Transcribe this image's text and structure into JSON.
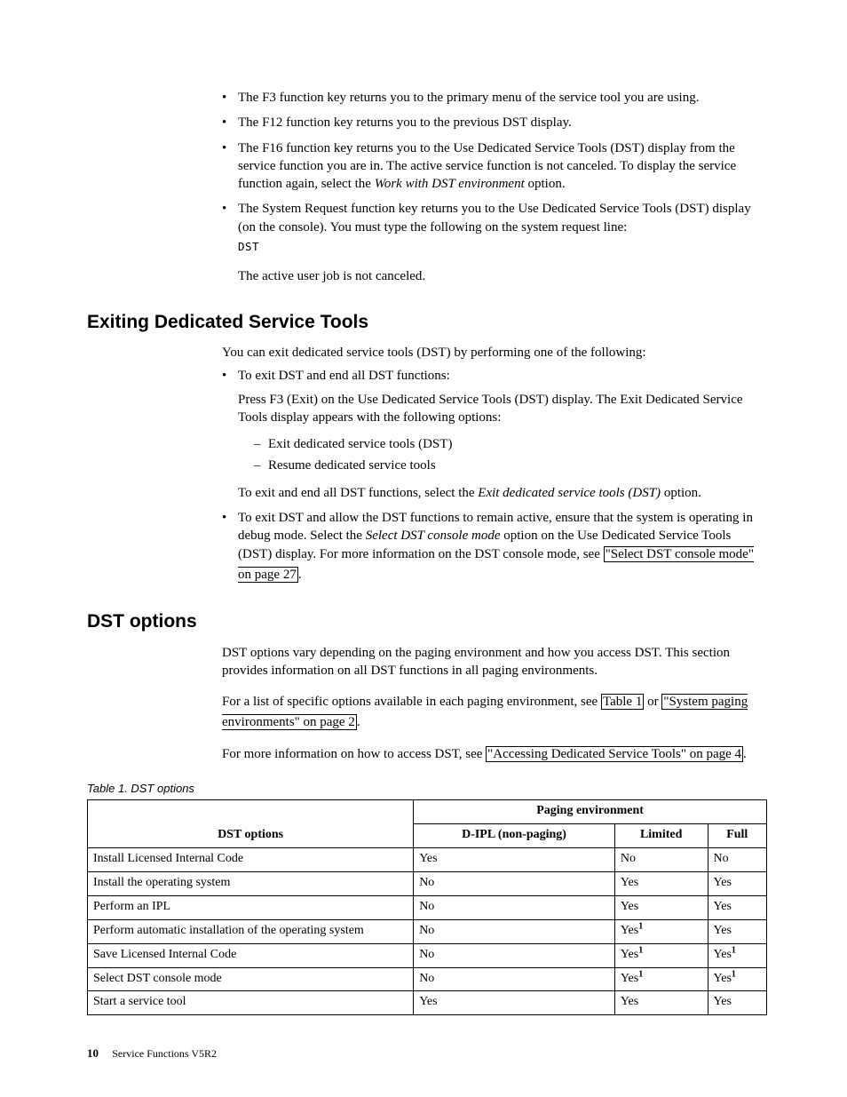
{
  "intro_bullets": [
    {
      "text": "The F3 function key returns you to the primary menu of the service tool you are using."
    },
    {
      "text": "The F12 function key returns you to the previous DST display."
    },
    {
      "segments": [
        {
          "t": "The F16 function key returns you to the Use Dedicated Service Tools (DST) display from the service function you are in. The active service function is not canceled. To display the service function again, select the "
        },
        {
          "t": "Work with DST environment",
          "italic": true
        },
        {
          "t": " option."
        }
      ]
    },
    {
      "text": "The System Request function key returns you to the Use Dedicated Service Tools (DST) display (on the console). You must type the following on the system request line:",
      "code": "DST",
      "after": "The active user job is not canceled."
    }
  ],
  "section1": {
    "heading": "Exiting Dedicated Service Tools",
    "intro": "You can exit dedicated service tools (DST) by performing one of the following:",
    "bullets": [
      {
        "lead": "To exit DST and end all DST functions:",
        "sub_para": "Press F3 (Exit) on the Use Dedicated Service Tools (DST) display. The Exit Dedicated Service Tools display appears with the following options:",
        "dashes": [
          "Exit dedicated service tools (DST)",
          "Resume dedicated service tools"
        ],
        "tail_segments": [
          {
            "t": "To exit and end all DST functions, select the "
          },
          {
            "t": "Exit dedicated service tools (DST)",
            "italic": true
          },
          {
            "t": " option."
          }
        ]
      },
      {
        "segments": [
          {
            "t": "To exit DST and allow the DST functions to remain active, ensure that the system is operating in debug mode. Select the "
          },
          {
            "t": "Select DST console mode",
            "italic": true
          },
          {
            "t": " option on the Use Dedicated Service Tools (DST) display. For more information on the DST console mode, see "
          },
          {
            "t": "\"Select DST console mode\" on page 27",
            "xref": true
          },
          {
            "t": "."
          }
        ]
      }
    ]
  },
  "section2": {
    "heading": "DST options",
    "p1": "DST options vary depending on the paging environment and how you access DST. This section provides information on all DST functions in all paging environments.",
    "p2_segments": [
      {
        "t": "For a list of specific options available in each paging environment, see "
      },
      {
        "t": "Table 1",
        "xref": true
      },
      {
        "t": " or "
      },
      {
        "t": "\"System paging environments\" on page 2",
        "xref": true
      },
      {
        "t": "."
      }
    ],
    "p3_segments": [
      {
        "t": "For more information on how to access DST, see "
      },
      {
        "t": "\"Accessing Dedicated Service Tools\" on page 4",
        "xref": true
      },
      {
        "t": "."
      }
    ],
    "table_caption": "Table 1. DST options",
    "table": {
      "group_header": "Paging environment",
      "col_options": "DST options",
      "cols": [
        "D-IPL (non-paging)",
        "Limited",
        "Full"
      ],
      "rows": [
        {
          "opt": "Install Licensed Internal Code",
          "c": [
            "Yes",
            "No",
            "No"
          ],
          "sup": [
            false,
            false,
            false
          ]
        },
        {
          "opt": "Install the operating system",
          "c": [
            "No",
            "Yes",
            "Yes"
          ],
          "sup": [
            false,
            false,
            false
          ]
        },
        {
          "opt": "Perform an IPL",
          "c": [
            "No",
            "Yes",
            "Yes"
          ],
          "sup": [
            false,
            false,
            false
          ]
        },
        {
          "opt": "Perform automatic installation of the operating system",
          "c": [
            "No",
            "Yes",
            "Yes"
          ],
          "sup": [
            false,
            true,
            false
          ]
        },
        {
          "opt": "Save Licensed Internal Code",
          "c": [
            "No",
            "Yes",
            "Yes"
          ],
          "sup": [
            false,
            true,
            true
          ]
        },
        {
          "opt": "Select DST console mode",
          "c": [
            "No",
            "Yes",
            "Yes"
          ],
          "sup": [
            false,
            true,
            true
          ]
        },
        {
          "opt": "Start a service tool",
          "c": [
            "Yes",
            "Yes",
            "Yes"
          ],
          "sup": [
            false,
            false,
            false
          ]
        }
      ]
    }
  },
  "footer": {
    "pagenum": "10",
    "doctitle": "Service Functions V5R2"
  }
}
